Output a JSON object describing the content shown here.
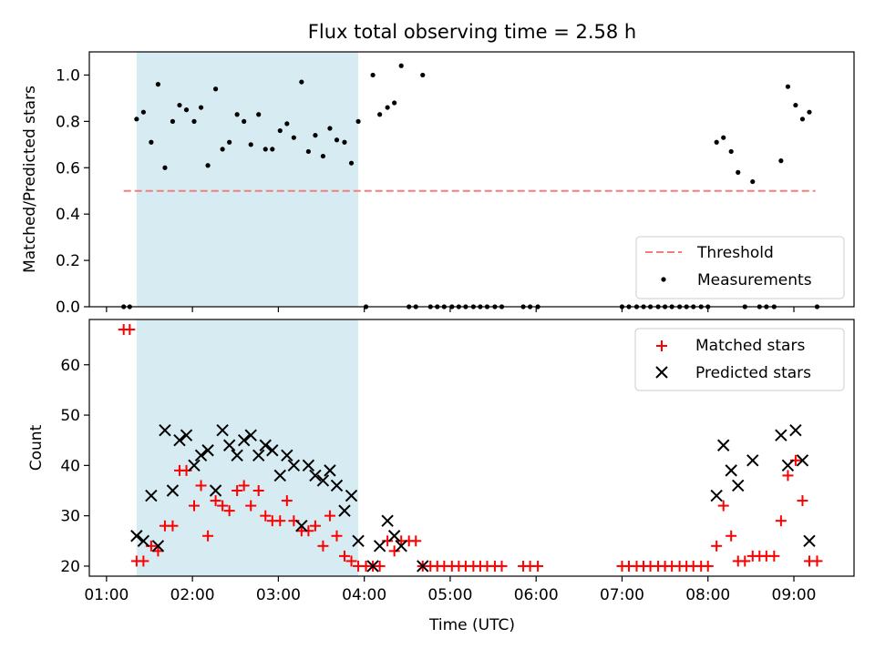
{
  "chart_data": [
    {
      "type": "scatter",
      "title": "Flux total observing time = 2.58 h",
      "ylabel": "Matched/Predicted stars",
      "xlabel": "",
      "xlim": [
        0.8,
        9.7
      ],
      "ylim": [
        0.0,
        1.1
      ],
      "yticks": [
        0.0,
        0.2,
        0.4,
        0.6,
        0.8,
        1.0
      ],
      "ytick_labels": [
        "0.0",
        "0.2",
        "0.4",
        "0.6",
        "0.8",
        "1.0"
      ],
      "xticks": [
        1,
        2,
        3,
        4,
        5,
        6,
        7,
        8,
        9
      ],
      "shaded_region": [
        1.35,
        3.93
      ],
      "shaded_color": "#add8e6",
      "legend_position": "lower-right",
      "threshold": {
        "name": "Threshold",
        "y": 0.5,
        "x_range": [
          1.2,
          9.25
        ],
        "color": "#f08080"
      },
      "series": [
        {
          "name": "Measurements",
          "color": "#000000",
          "points": [
            [
              1.2,
              0.0
            ],
            [
              1.27,
              0.0
            ],
            [
              1.35,
              0.81
            ],
            [
              1.43,
              0.84
            ],
            [
              1.52,
              0.71
            ],
            [
              1.6,
              0.96
            ],
            [
              1.68,
              0.6
            ],
            [
              1.77,
              0.8
            ],
            [
              1.85,
              0.87
            ],
            [
              1.93,
              0.85
            ],
            [
              2.02,
              0.8
            ],
            [
              2.1,
              0.86
            ],
            [
              2.18,
              0.61
            ],
            [
              2.27,
              0.94
            ],
            [
              2.35,
              0.68
            ],
            [
              2.43,
              0.71
            ],
            [
              2.52,
              0.83
            ],
            [
              2.6,
              0.8
            ],
            [
              2.68,
              0.7
            ],
            [
              2.77,
              0.83
            ],
            [
              2.85,
              0.68
            ],
            [
              2.93,
              0.68
            ],
            [
              3.02,
              0.76
            ],
            [
              3.1,
              0.79
            ],
            [
              3.18,
              0.73
            ],
            [
              3.27,
              0.97
            ],
            [
              3.35,
              0.67
            ],
            [
              3.43,
              0.74
            ],
            [
              3.52,
              0.65
            ],
            [
              3.6,
              0.77
            ],
            [
              3.68,
              0.72
            ],
            [
              3.77,
              0.71
            ],
            [
              3.85,
              0.62
            ],
            [
              3.93,
              0.8
            ],
            [
              4.02,
              0.0
            ],
            [
              4.1,
              1.0
            ],
            [
              4.18,
              0.83
            ],
            [
              4.27,
              0.86
            ],
            [
              4.35,
              0.88
            ],
            [
              4.43,
              1.04
            ],
            [
              4.52,
              0.0
            ],
            [
              4.6,
              0.0
            ],
            [
              4.68,
              1.0
            ],
            [
              4.77,
              0.0
            ],
            [
              4.85,
              0.0
            ],
            [
              4.93,
              0.0
            ],
            [
              5.02,
              0.0
            ],
            [
              5.1,
              0.0
            ],
            [
              5.18,
              0.0
            ],
            [
              5.27,
              0.0
            ],
            [
              5.35,
              0.0
            ],
            [
              5.43,
              0.0
            ],
            [
              5.52,
              0.0
            ],
            [
              5.6,
              0.0
            ],
            [
              5.85,
              0.0
            ],
            [
              5.93,
              0.0
            ],
            [
              6.02,
              0.0
            ],
            [
              7.0,
              0.0
            ],
            [
              7.08,
              0.0
            ],
            [
              7.17,
              0.0
            ],
            [
              7.25,
              0.0
            ],
            [
              7.33,
              0.0
            ],
            [
              7.42,
              0.0
            ],
            [
              7.5,
              0.0
            ],
            [
              7.58,
              0.0
            ],
            [
              7.67,
              0.0
            ],
            [
              7.75,
              0.0
            ],
            [
              7.83,
              0.0
            ],
            [
              7.92,
              0.0
            ],
            [
              8.0,
              0.0
            ],
            [
              8.1,
              0.71
            ],
            [
              8.18,
              0.73
            ],
            [
              8.27,
              0.67
            ],
            [
              8.35,
              0.58
            ],
            [
              8.43,
              0.0
            ],
            [
              8.52,
              0.54
            ],
            [
              8.6,
              0.0
            ],
            [
              8.68,
              0.0
            ],
            [
              8.77,
              0.0
            ],
            [
              8.85,
              0.63
            ],
            [
              8.93,
              0.95
            ],
            [
              9.02,
              0.87
            ],
            [
              9.1,
              0.81
            ],
            [
              9.18,
              0.84
            ],
            [
              9.27,
              0.0
            ]
          ]
        }
      ]
    },
    {
      "type": "scatter",
      "title": "",
      "ylabel": "Count",
      "xlabel": "Time (UTC)",
      "xlim": [
        0.8,
        9.7
      ],
      "ylim": [
        18,
        69
      ],
      "yticks": [
        20,
        30,
        40,
        50,
        60
      ],
      "ytick_labels": [
        "20",
        "30",
        "40",
        "50",
        "60"
      ],
      "xticks": [
        1,
        2,
        3,
        4,
        5,
        6,
        7,
        8,
        9
      ],
      "xtick_labels": [
        "01:00",
        "02:00",
        "03:00",
        "04:00",
        "05:00",
        "06:00",
        "07:00",
        "08:00",
        "09:00"
      ],
      "shaded_region": [
        1.35,
        3.93
      ],
      "shaded_color": "#add8e6",
      "legend_position": "top-right",
      "series": [
        {
          "name": "Matched stars",
          "marker": "plus",
          "color": "#ff0000",
          "points": [
            [
              1.2,
              67
            ],
            [
              1.27,
              67
            ],
            [
              1.35,
              21
            ],
            [
              1.43,
              21
            ],
            [
              1.52,
              24
            ],
            [
              1.6,
              23
            ],
            [
              1.68,
              28
            ],
            [
              1.77,
              28
            ],
            [
              1.85,
              39
            ],
            [
              1.93,
              39
            ],
            [
              2.02,
              32
            ],
            [
              2.1,
              36
            ],
            [
              2.18,
              26
            ],
            [
              2.27,
              33
            ],
            [
              2.35,
              32
            ],
            [
              2.43,
              31
            ],
            [
              2.52,
              35
            ],
            [
              2.6,
              36
            ],
            [
              2.68,
              32
            ],
            [
              2.77,
              35
            ],
            [
              2.85,
              30
            ],
            [
              2.93,
              29
            ],
            [
              3.02,
              29
            ],
            [
              3.1,
              33
            ],
            [
              3.18,
              29
            ],
            [
              3.27,
              27
            ],
            [
              3.35,
              27
            ],
            [
              3.43,
              28
            ],
            [
              3.52,
              24
            ],
            [
              3.6,
              30
            ],
            [
              3.68,
              26
            ],
            [
              3.77,
              22
            ],
            [
              3.85,
              21
            ],
            [
              3.93,
              20
            ],
            [
              4.02,
              20
            ],
            [
              4.1,
              20
            ],
            [
              4.18,
              20
            ],
            [
              4.27,
              25
            ],
            [
              4.35,
              23
            ],
            [
              4.43,
              25
            ],
            [
              4.52,
              25
            ],
            [
              4.6,
              25
            ],
            [
              4.68,
              20
            ],
            [
              4.77,
              20
            ],
            [
              4.85,
              20
            ],
            [
              4.93,
              20
            ],
            [
              5.02,
              20
            ],
            [
              5.1,
              20
            ],
            [
              5.18,
              20
            ],
            [
              5.27,
              20
            ],
            [
              5.35,
              20
            ],
            [
              5.43,
              20
            ],
            [
              5.52,
              20
            ],
            [
              5.6,
              20
            ],
            [
              5.85,
              20
            ],
            [
              5.93,
              20
            ],
            [
              6.02,
              20
            ],
            [
              7.0,
              20
            ],
            [
              7.08,
              20
            ],
            [
              7.17,
              20
            ],
            [
              7.25,
              20
            ],
            [
              7.33,
              20
            ],
            [
              7.42,
              20
            ],
            [
              7.5,
              20
            ],
            [
              7.58,
              20
            ],
            [
              7.67,
              20
            ],
            [
              7.75,
              20
            ],
            [
              7.83,
              20
            ],
            [
              7.92,
              20
            ],
            [
              8.0,
              20
            ],
            [
              8.1,
              24
            ],
            [
              8.18,
              32
            ],
            [
              8.27,
              26
            ],
            [
              8.35,
              21
            ],
            [
              8.43,
              21
            ],
            [
              8.52,
              22
            ],
            [
              8.6,
              22
            ],
            [
              8.68,
              22
            ],
            [
              8.77,
              22
            ],
            [
              8.85,
              29
            ],
            [
              8.93,
              38
            ],
            [
              9.02,
              41
            ],
            [
              9.1,
              33
            ],
            [
              9.18,
              21
            ],
            [
              9.27,
              21
            ]
          ]
        },
        {
          "name": "Predicted stars",
          "marker": "x",
          "color": "#000000",
          "points": [
            [
              1.35,
              26
            ],
            [
              1.43,
              25
            ],
            [
              1.52,
              34
            ],
            [
              1.6,
              24
            ],
            [
              1.68,
              47
            ],
            [
              1.77,
              35
            ],
            [
              1.85,
              45
            ],
            [
              1.93,
              46
            ],
            [
              2.02,
              40
            ],
            [
              2.1,
              42
            ],
            [
              2.18,
              43
            ],
            [
              2.27,
              35
            ],
            [
              2.35,
              47
            ],
            [
              2.43,
              44
            ],
            [
              2.52,
              42
            ],
            [
              2.6,
              45
            ],
            [
              2.68,
              46
            ],
            [
              2.77,
              42
            ],
            [
              2.85,
              44
            ],
            [
              2.93,
              43
            ],
            [
              3.02,
              38
            ],
            [
              3.1,
              42
            ],
            [
              3.18,
              40
            ],
            [
              3.27,
              28
            ],
            [
              3.35,
              40
            ],
            [
              3.43,
              38
            ],
            [
              3.52,
              37
            ],
            [
              3.6,
              39
            ],
            [
              3.68,
              36
            ],
            [
              3.77,
              31
            ],
            [
              3.85,
              34
            ],
            [
              3.93,
              25
            ],
            [
              4.1,
              20
            ],
            [
              4.18,
              24
            ],
            [
              4.27,
              29
            ],
            [
              4.35,
              26
            ],
            [
              4.43,
              24
            ],
            [
              4.68,
              20
            ],
            [
              8.1,
              34
            ],
            [
              8.18,
              44
            ],
            [
              8.27,
              39
            ],
            [
              8.35,
              36
            ],
            [
              8.52,
              41
            ],
            [
              8.85,
              46
            ],
            [
              8.93,
              40
            ],
            [
              9.02,
              47
            ],
            [
              9.1,
              41
            ],
            [
              9.18,
              25
            ]
          ]
        }
      ]
    }
  ]
}
